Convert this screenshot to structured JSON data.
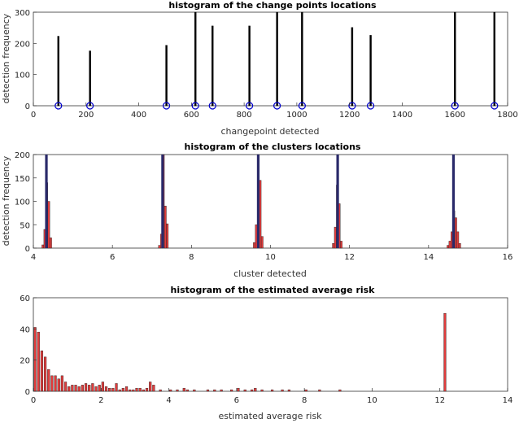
{
  "chart_data": [
    {
      "type": "bar",
      "title": "histogram of the change points locations",
      "xlabel": "changepoint detected",
      "ylabel": "detection frequency",
      "xlim": [
        0,
        1800
      ],
      "ylim": [
        0,
        300
      ],
      "xticks": [
        "0",
        "200",
        "400",
        "600",
        "800",
        "1000",
        "1200",
        "1400",
        "1600",
        "1800"
      ],
      "yticks": [
        "0",
        "100",
        "200",
        "300"
      ],
      "bar_color": "#000000",
      "marker_color": "#0000cc",
      "grid": false,
      "series": [
        {
          "x": [
            95,
            215,
            505,
            615,
            680,
            820,
            925,
            1020,
            1210,
            1280,
            1600,
            1750
          ],
          "values": [
            223,
            176,
            194,
            300,
            256,
            256,
            300,
            300,
            251,
            226,
            300,
            300
          ]
        }
      ],
      "markers": [
        95,
        215,
        505,
        615,
        680,
        820,
        925,
        1020,
        1210,
        1280,
        1600,
        1750
      ]
    },
    {
      "type": "bar",
      "title": "histogram of the clusters locations",
      "xlabel": "cluster detected",
      "ylabel": "detection frequency",
      "xlim": [
        4,
        16
      ],
      "ylim": [
        0,
        200
      ],
      "xticks": [
        "4",
        "6",
        "8",
        "10",
        "12",
        "14",
        "16"
      ],
      "yticks": [
        "0",
        "50",
        "100",
        "150",
        "200"
      ],
      "bar_color": "#e03c3c",
      "line_color": "#2a2a6a",
      "grid": false,
      "series": [
        {
          "x": [
            4.24,
            4.29,
            4.34,
            4.39,
            4.44,
            7.19,
            7.24,
            7.29,
            7.34,
            7.39,
            9.59,
            9.64,
            9.69,
            9.74,
            9.79,
            11.59,
            11.64,
            11.69,
            11.74,
            11.79,
            14.49,
            14.54,
            14.59,
            14.64,
            14.69,
            14.74,
            14.79
          ],
          "values": [
            7,
            40,
            140,
            100,
            22,
            6,
            30,
            200,
            90,
            52,
            12,
            50,
            200,
            145,
            25,
            10,
            45,
            135,
            95,
            15,
            6,
            15,
            35,
            80,
            65,
            35,
            10
          ]
        }
      ],
      "lines": [
        4.33,
        7.27,
        9.69,
        11.7,
        14.63
      ]
    },
    {
      "type": "bar",
      "title": "histogram of the estimated average risk",
      "xlabel": "estimated average risk",
      "ylabel": "",
      "xlim": [
        0,
        14
      ],
      "ylim": [
        0,
        60
      ],
      "xticks": [
        "0",
        "2",
        "4",
        "6",
        "8",
        "10",
        "12",
        "14"
      ],
      "yticks": [
        "0",
        "20",
        "40",
        "60"
      ],
      "bar_color": "#e03c3c",
      "grid": false,
      "series": [
        {
          "x": [
            0.05,
            0.15,
            0.25,
            0.35,
            0.45,
            0.55,
            0.65,
            0.75,
            0.85,
            0.95,
            1.05,
            1.15,
            1.25,
            1.35,
            1.45,
            1.55,
            1.65,
            1.75,
            1.85,
            1.95,
            2.05,
            2.15,
            2.25,
            2.35,
            2.45,
            2.55,
            2.65,
            2.75,
            2.85,
            2.95,
            3.05,
            3.15,
            3.25,
            3.35,
            3.45,
            3.55,
            3.75,
            4.05,
            4.25,
            4.45,
            4.55,
            4.75,
            5.15,
            5.35,
            5.55,
            5.85,
            6.05,
            6.25,
            6.45,
            6.55,
            6.75,
            7.05,
            7.35,
            7.55,
            8.05,
            8.45,
            9.05,
            12.15
          ],
          "values": [
            41,
            38,
            26,
            22,
            14,
            10,
            10,
            8,
            10,
            6,
            3,
            4,
            4,
            3,
            4,
            5,
            4,
            5,
            3,
            4,
            6,
            3,
            2,
            2,
            5,
            1,
            2,
            3,
            1,
            1,
            2,
            2,
            1,
            2,
            6,
            4,
            1,
            1,
            1,
            2,
            1,
            1,
            1,
            1,
            1,
            1,
            2,
            1,
            1,
            2,
            1,
            1,
            1,
            1,
            1,
            1,
            1,
            50
          ]
        }
      ]
    }
  ]
}
